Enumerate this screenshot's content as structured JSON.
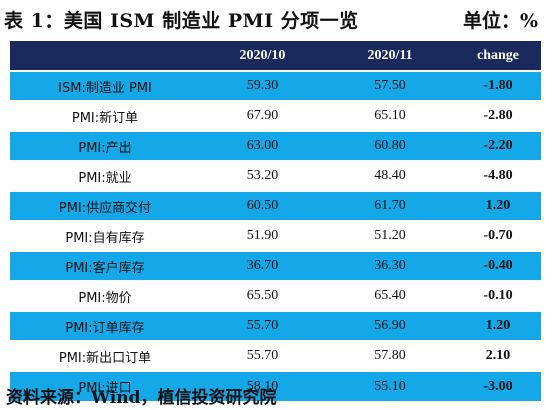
{
  "header": {
    "title": "表 1：美国 ISM 制造业 PMI 分项一览",
    "unit": "单位：%"
  },
  "table": {
    "columns": [
      "",
      "2020/10",
      "2020/11",
      "change"
    ],
    "rows": [
      {
        "name": "ISM:制造业 PMI",
        "v1": "59.30",
        "v2": "57.50",
        "change": "-1.80"
      },
      {
        "name": "PMI:新订单",
        "v1": "67.90",
        "v2": "65.10",
        "change": "-2.80"
      },
      {
        "name": "PMI:产出",
        "v1": "63.00",
        "v2": "60.80",
        "change": "-2.20"
      },
      {
        "name": "PMI:就业",
        "v1": "53.20",
        "v2": "48.40",
        "change": "-4.80"
      },
      {
        "name": "PMI:供应商交付",
        "v1": "60.50",
        "v2": "61.70",
        "change": "1.20"
      },
      {
        "name": "PMI:自有库存",
        "v1": "51.90",
        "v2": "51.20",
        "change": "-0.70"
      },
      {
        "name": "PMI:客户库存",
        "v1": "36.70",
        "v2": "36.30",
        "change": "-0.40"
      },
      {
        "name": "PMI:物价",
        "v1": "65.50",
        "v2": "65.40",
        "change": "-0.10"
      },
      {
        "name": "PMI:订单库存",
        "v1": "55.70",
        "v2": "56.90",
        "change": "1.20"
      },
      {
        "name": "PMI:新出口订单",
        "v1": "55.70",
        "v2": "57.80",
        "change": "2.10"
      },
      {
        "name": "PMI:进口",
        "v1": "58.10",
        "v2": "55.10",
        "change": "-3.00"
      }
    ]
  },
  "colors": {
    "header_bg": "#1b2a5c",
    "row_blue": "#14a8e8",
    "row_white": "#ffffff"
  },
  "footer": {
    "source": "资料来源：Wind，植信投资研究院"
  }
}
